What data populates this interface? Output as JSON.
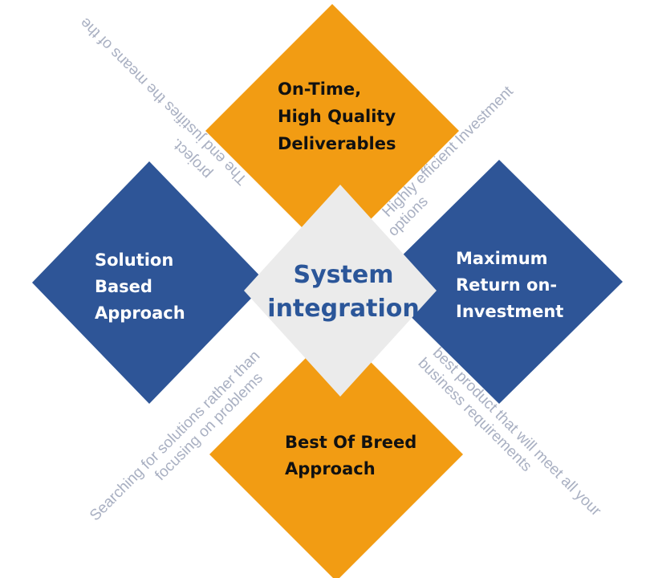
{
  "colors": {
    "orange": "#f29c13",
    "blue": "#2e5597",
    "center_fill": "#ebebeb",
    "center_text": "#2b5699",
    "diagonal_text": "#a9b0c2"
  },
  "center": {
    "line1": "System",
    "line2": "integration"
  },
  "top": {
    "line1": "On-Time,",
    "line2": "High Quality",
    "line3": "Deliverables"
  },
  "left": {
    "line1": "Solution",
    "line2": "Based",
    "line3": "Approach"
  },
  "right": {
    "line1": "Maximum",
    "line2": "Return on-",
    "line3": "Investment"
  },
  "bottom": {
    "line1": "Best Of Breed",
    "line2": "Approach"
  },
  "diagonals": {
    "top_left": {
      "line1": "The end justifies the means of the",
      "line2": "project."
    },
    "top_right": {
      "line1": "Highly efficient Investment",
      "line2": "options"
    },
    "bottom_left": {
      "line1": "Searching for solutions rather than",
      "line2": "focusing on problems"
    },
    "bottom_right": {
      "line1": "best product that will meet all your",
      "line2": "business requirements"
    }
  }
}
